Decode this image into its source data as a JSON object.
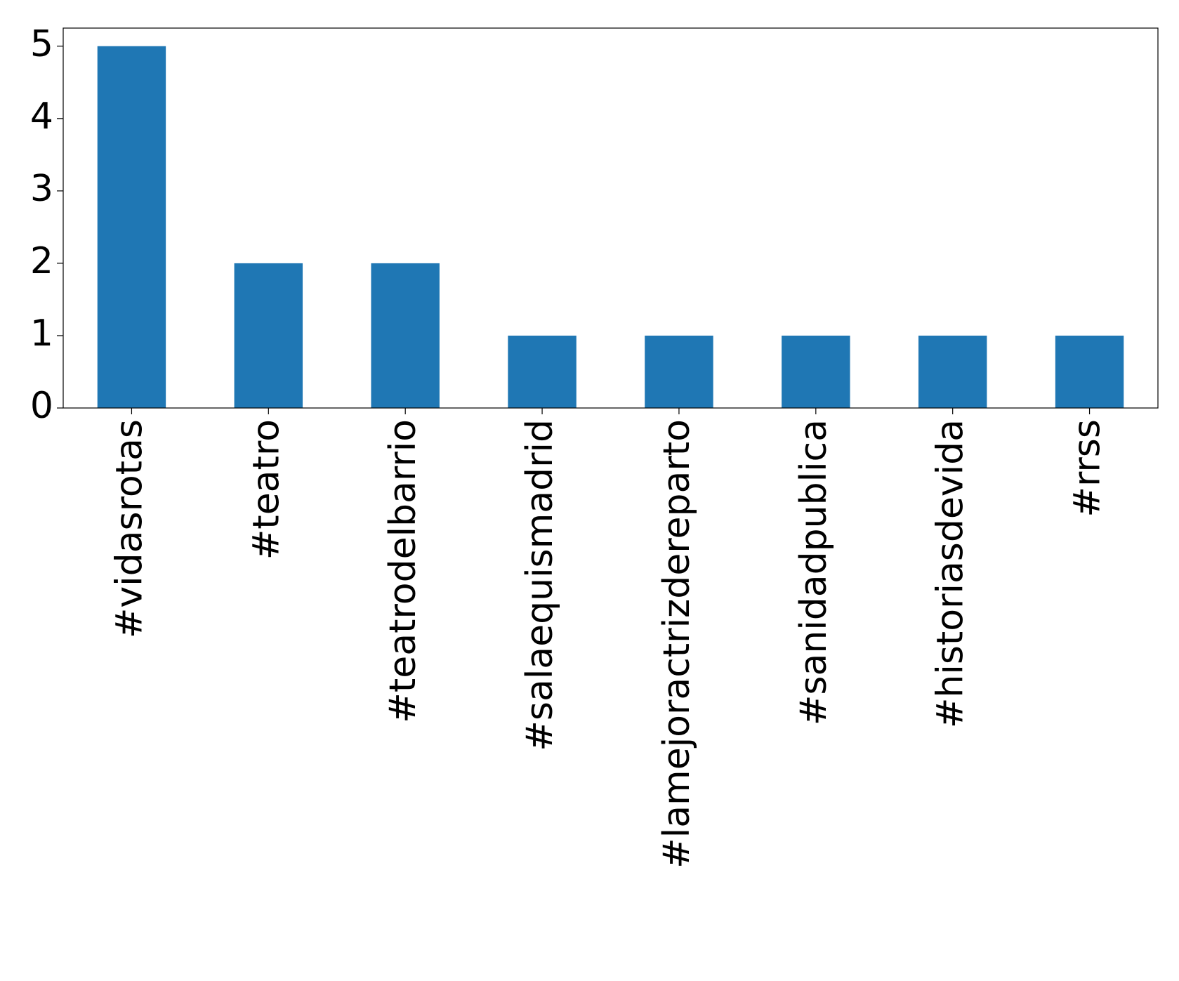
{
  "chart_data": {
    "type": "bar",
    "categories": [
      "#vidasrotas",
      "#teatro",
      "#teatrodelbarrio",
      "#salaequismadrid",
      "#lamejoractrizdereparto",
      "#sanidadpublica",
      "#historiasdevida",
      "#rrss"
    ],
    "values": [
      5,
      2,
      2,
      1,
      1,
      1,
      1,
      1
    ],
    "color": "#1f77b4",
    "ylim": [
      0,
      5.25
    ],
    "yticks": [
      0,
      1,
      2,
      3,
      4,
      5
    ],
    "grid": false
  }
}
